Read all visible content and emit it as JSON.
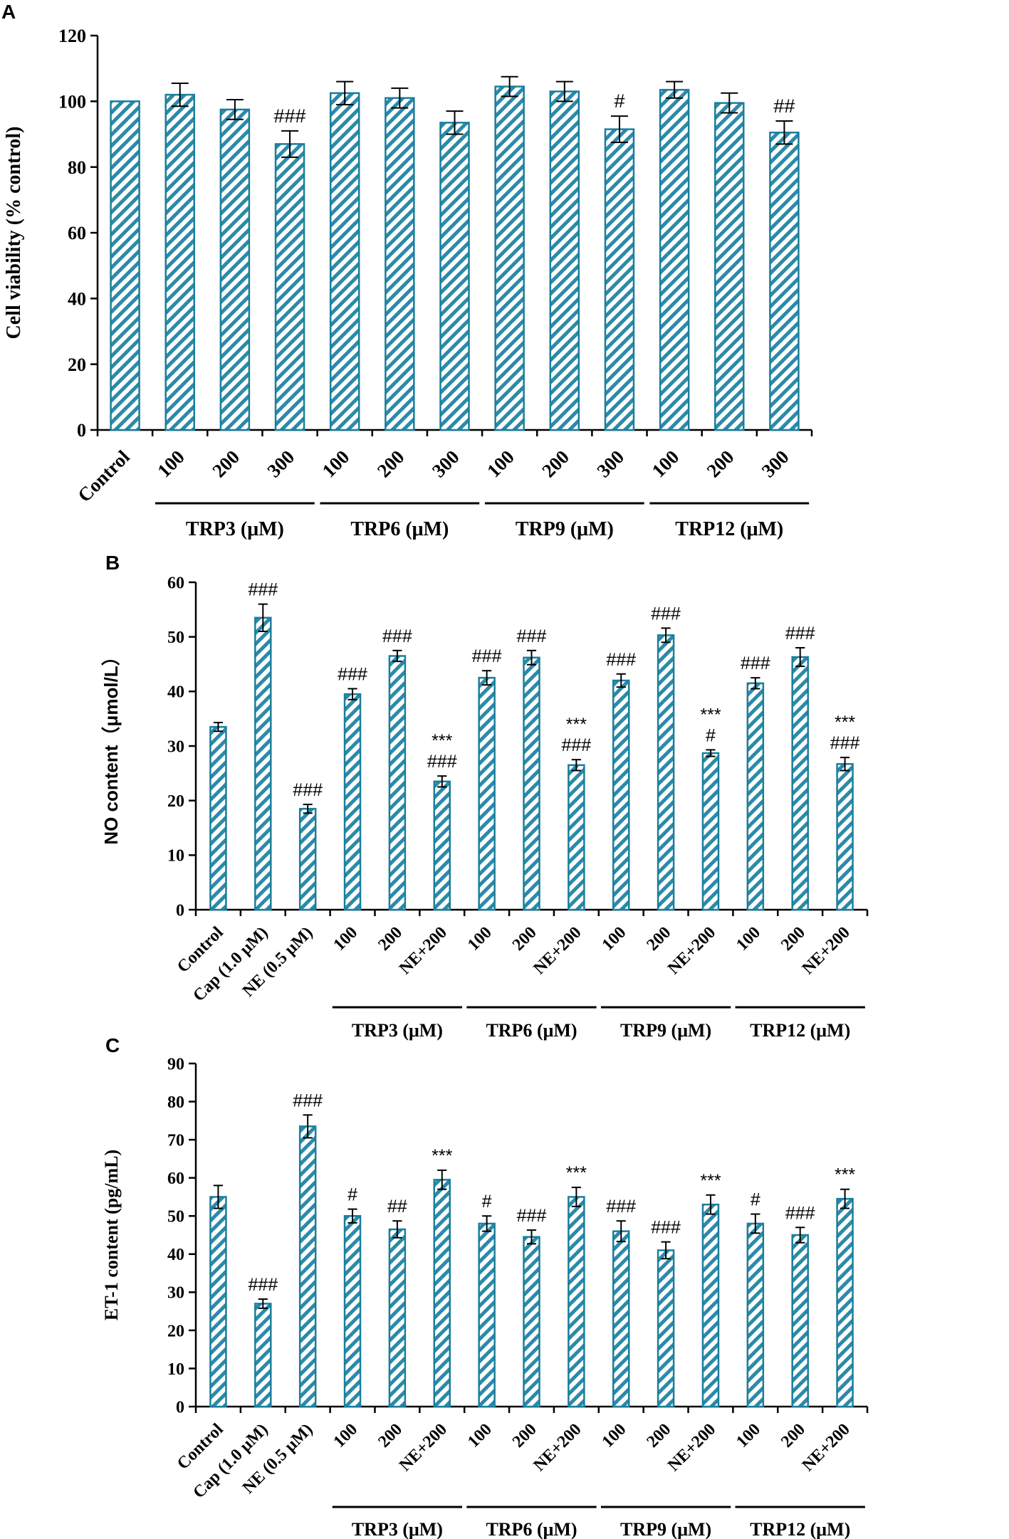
{
  "chart_data": [
    {
      "type": "bar",
      "panel": "A",
      "ylabel": "Cell viability (% control)",
      "ylim": [
        0,
        120
      ],
      "yticks": [
        0,
        20,
        40,
        60,
        80,
        100,
        120
      ],
      "categories": [
        "Control",
        "100",
        "200",
        "300",
        "100",
        "200",
        "300",
        "100",
        "200",
        "300",
        "100",
        "200",
        "300"
      ],
      "values": [
        100,
        102,
        97.5,
        87,
        102.5,
        101,
        93.5,
        104.5,
        103,
        91.5,
        103.5,
        99.5,
        90.5
      ],
      "errors": [
        0,
        3.5,
        3,
        4,
        3.5,
        3,
        3.5,
        3,
        3,
        4,
        2.5,
        3,
        3.5
      ],
      "annotations": [
        "",
        "",
        "",
        "###",
        "",
        "",
        "",
        "",
        "",
        "#",
        "",
        "",
        "##"
      ],
      "groups": [
        {
          "label": "TRP3 (μM)",
          "start": 1,
          "end": 3
        },
        {
          "label": "TRP6 (μM)",
          "start": 4,
          "end": 6
        },
        {
          "label": "TRP9 (μM)",
          "start": 7,
          "end": 9
        },
        {
          "label": "TRP12 (μM)",
          "start": 10,
          "end": 12
        }
      ],
      "bar_color": "#1a7e9c"
    },
    {
      "type": "bar",
      "panel": "B",
      "ylabel": "NO content（μmol/L）",
      "ylim": [
        0,
        60
      ],
      "yticks": [
        0,
        10,
        20,
        30,
        40,
        50,
        60
      ],
      "categories": [
        "Control",
        "Cap (1.0 μM)",
        "NE (0.5 μM)",
        "100",
        "200",
        "NE+200",
        "100",
        "200",
        "NE+200",
        "100",
        "200",
        "NE+200",
        "100",
        "200",
        "NE+200"
      ],
      "values": [
        33.5,
        53.5,
        18.5,
        39.5,
        46.5,
        23.5,
        42.5,
        46.2,
        26.5,
        42,
        50.3,
        28.7,
        41.5,
        46.3,
        26.7
      ],
      "errors": [
        0.8,
        2.5,
        0.8,
        1,
        1,
        1,
        1.3,
        1.3,
        1,
        1.2,
        1.3,
        0.6,
        1,
        1.7,
        1.2
      ],
      "annotations": [
        "",
        "###",
        "###",
        "###",
        "###",
        "***\n###",
        "###",
        "###",
        "***\n###",
        "###",
        "###",
        "***\n#",
        "###",
        "###",
        "***\n###"
      ],
      "groups": [
        {
          "label": "TRP3 (μM)",
          "start": 3,
          "end": 5
        },
        {
          "label": "TRP6 (μM)",
          "start": 6,
          "end": 8
        },
        {
          "label": "TRP9 (μM)",
          "start": 9,
          "end": 11
        },
        {
          "label": "TRP12 (μM)",
          "start": 12,
          "end": 14
        }
      ],
      "bar_color": "#1a7e9c"
    },
    {
      "type": "bar",
      "panel": "C",
      "ylabel": "ET-1 content (pg/mL)",
      "ylim": [
        0,
        90
      ],
      "yticks": [
        0,
        10,
        20,
        30,
        40,
        50,
        60,
        70,
        80,
        90
      ],
      "categories": [
        "Control",
        "Cap (1.0 μM)",
        "NE (0.5 μM)",
        "100",
        "200",
        "NE+200",
        "100",
        "200",
        "NE+200",
        "100",
        "200",
        "NE+200",
        "100",
        "200",
        "NE+200"
      ],
      "values": [
        55,
        27,
        73.5,
        50,
        46.5,
        59.5,
        48,
        44.5,
        55,
        46,
        41,
        53,
        48,
        45,
        54.5
      ],
      "errors": [
        3,
        1.2,
        3,
        1.8,
        2.2,
        2.5,
        2,
        1.8,
        2.5,
        2.7,
        2.2,
        2.5,
        2.5,
        2,
        2.5
      ],
      "annotations": [
        "",
        "###",
        "###",
        "#",
        "##",
        "***",
        "#",
        "###",
        "***",
        "###",
        "###",
        "***",
        "#",
        "###",
        "***"
      ],
      "groups": [
        {
          "label": "TRP3 (μM)",
          "start": 3,
          "end": 5
        },
        {
          "label": "TRP6 (μM)",
          "start": 6,
          "end": 8
        },
        {
          "label": "TRP9 (μM)",
          "start": 9,
          "end": 11
        },
        {
          "label": "TRP12 (μM)",
          "start": 12,
          "end": 14
        }
      ],
      "bar_color": "#1a7e9c"
    }
  ]
}
